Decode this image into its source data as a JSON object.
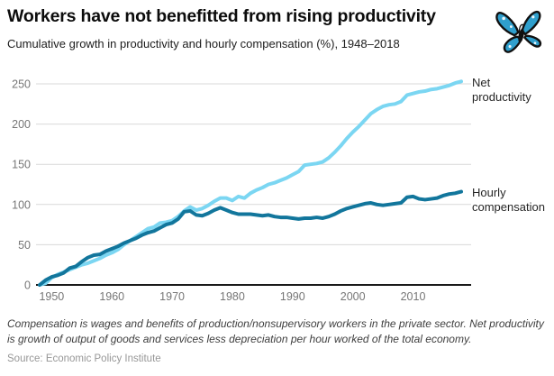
{
  "header": {
    "title": "Workers have not benefitted from rising productivity",
    "subtitle": "Cumulative growth in productivity and hourly compensation (%), 1948–2018",
    "logo": "butterfly-logo"
  },
  "chart_data": {
    "type": "line",
    "title": "Workers have not benefitted from rising productivity",
    "subtitle": "Cumulative growth in productivity and hourly compensation (%), 1948–2018",
    "x_start": 1948,
    "x_end": 2018,
    "x_step": 1,
    "x_ticks": [
      1950,
      1960,
      1970,
      1980,
      1990,
      2000,
      2010
    ],
    "y_ticks": [
      0,
      50,
      100,
      150,
      200,
      250
    ],
    "ylim": [
      0,
      265
    ],
    "grid": "horizontal",
    "legend_position": "right-of-line-end",
    "series": [
      {
        "name": "Net productivity",
        "color": "#7bd6f2",
        "end_value": 253,
        "values": [
          0,
          2,
          9,
          13,
          16,
          19,
          22,
          25,
          27,
          30,
          33,
          37,
          40,
          44,
          50,
          55,
          60,
          65,
          70,
          72,
          77,
          78,
          80,
          85,
          92,
          97,
          93,
          95,
          99,
          104,
          108,
          108,
          105,
          110,
          108,
          114,
          118,
          121,
          125,
          127,
          130,
          133,
          137,
          141,
          149,
          150,
          151,
          153,
          158,
          165,
          173,
          182,
          190,
          197,
          205,
          213,
          218,
          222,
          224,
          225,
          228,
          236,
          238,
          240,
          241,
          243,
          244,
          246,
          248,
          251,
          253
        ]
      },
      {
        "name": "Hourly compensation",
        "color": "#12769c",
        "end_value": 116,
        "values": [
          0,
          6,
          10,
          12,
          15,
          21,
          23,
          29,
          34,
          37,
          38,
          42,
          45,
          48,
          52,
          55,
          58,
          62,
          65,
          67,
          71,
          75,
          77,
          82,
          91,
          92,
          87,
          86,
          89,
          93,
          96,
          93,
          90,
          88,
          88,
          88,
          87,
          86,
          87,
          85,
          84,
          84,
          83,
          82,
          83,
          83,
          84,
          83,
          85,
          88,
          92,
          95,
          97,
          99,
          101,
          102,
          100,
          99,
          100,
          101,
          102,
          109,
          110,
          107,
          106,
          107,
          108,
          111,
          113,
          114,
          116
        ]
      }
    ]
  },
  "footnote": "Compensation is wages and benefits of production/nonsupervisory workers in the private sector. Net productivity is growth of output of goods and services less depreciation per hour worked of the total economy.",
  "source": "Source: Economic Policy Institute"
}
